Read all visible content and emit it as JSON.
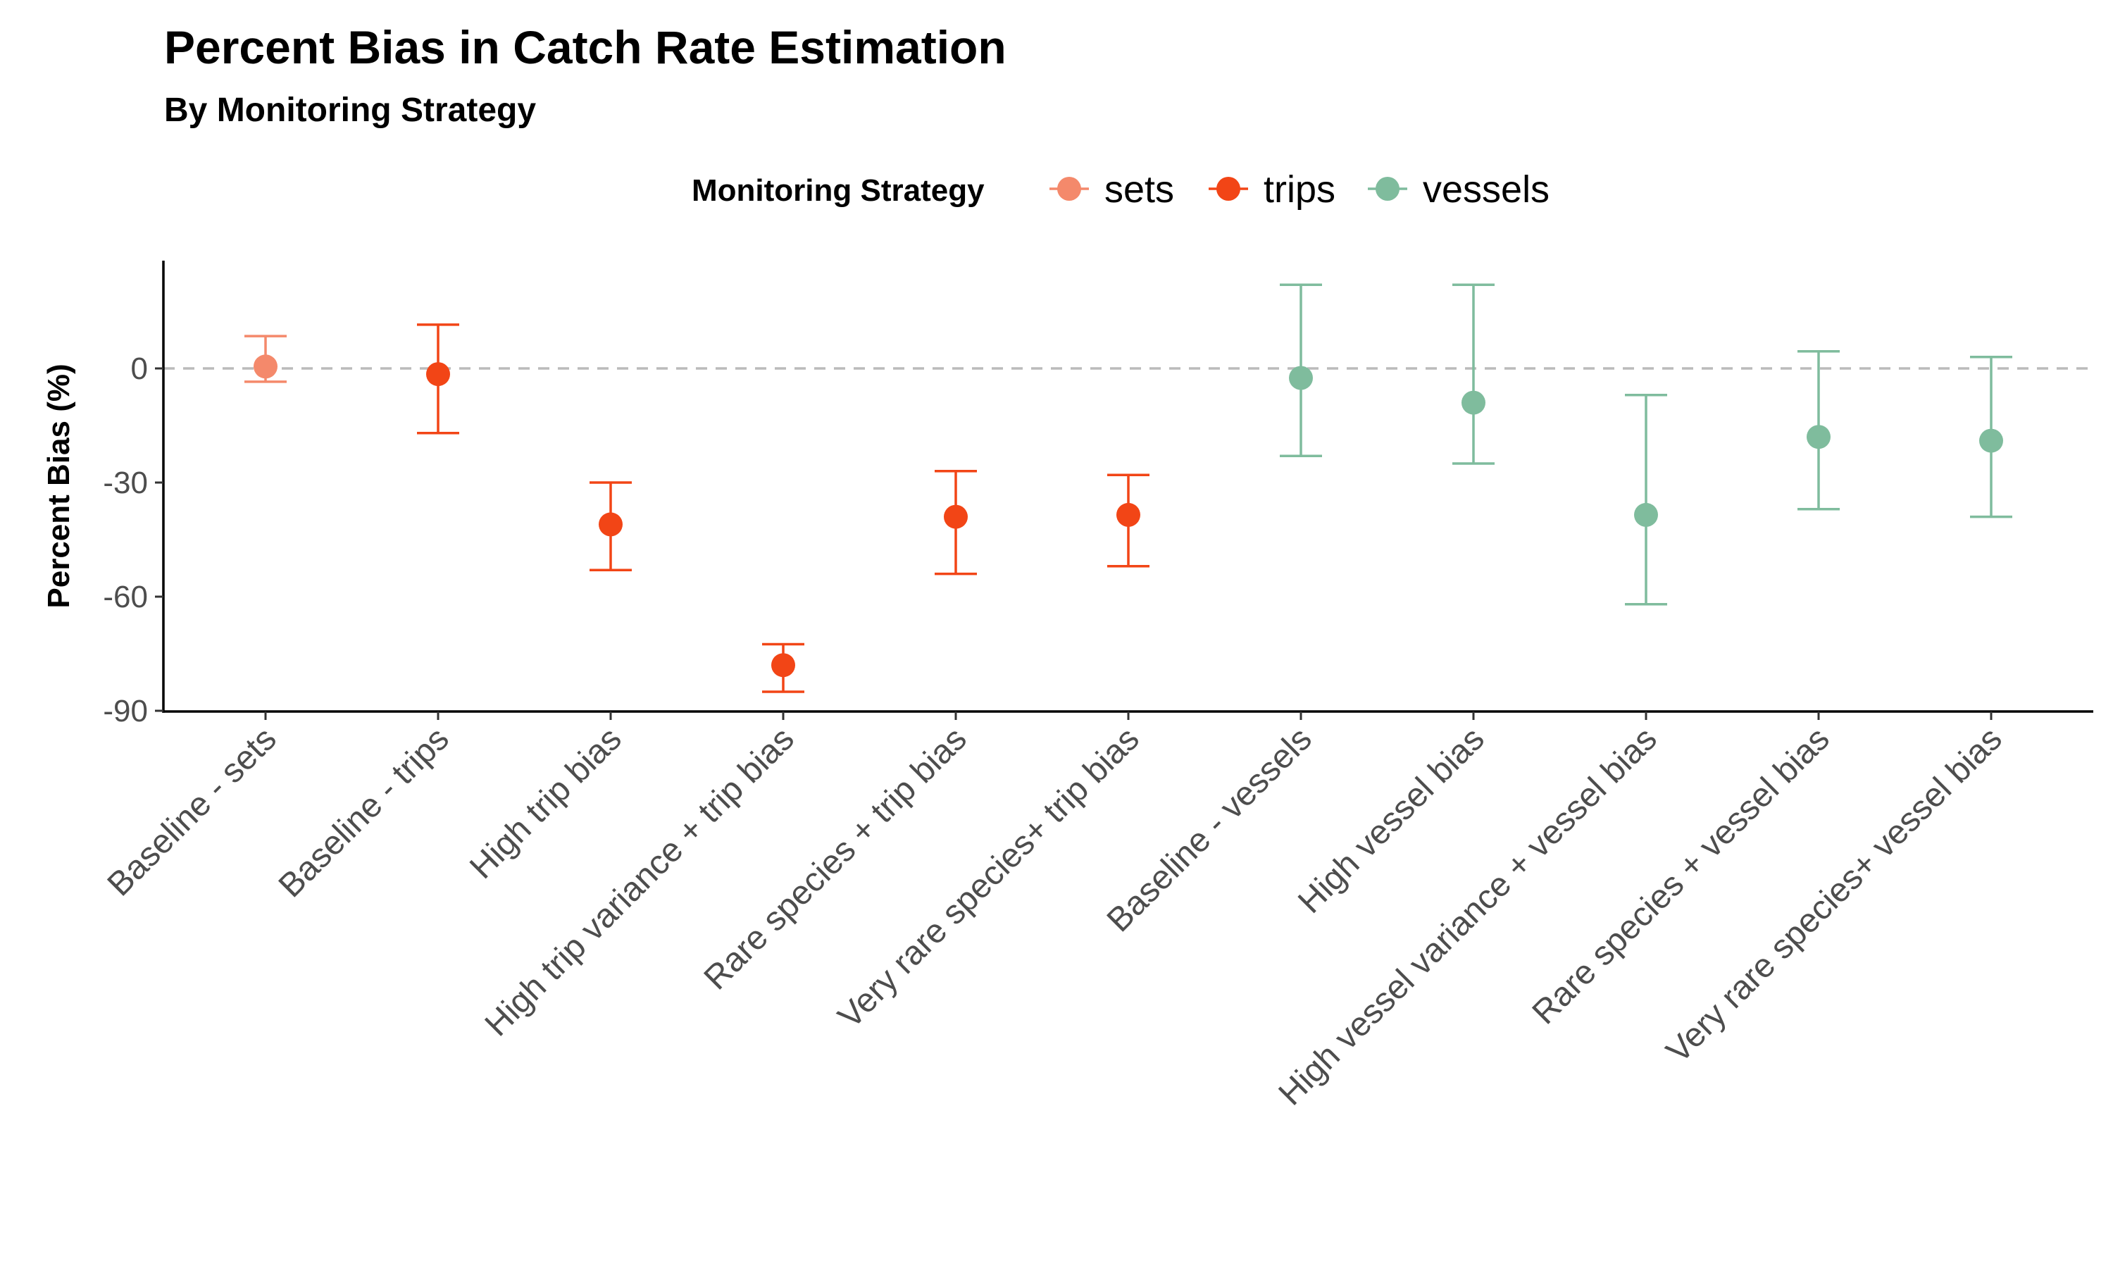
{
  "chart_data": {
    "type": "scatter",
    "title": "Percent Bias in Catch Rate Estimation",
    "subtitle": "By Monitoring Strategy",
    "xlabel": "",
    "ylabel": "Percent Bias (%)",
    "ylim": [
      -90,
      27
    ],
    "yticks": [
      0,
      -30,
      -60,
      -90
    ],
    "reference_line": {
      "y": 0,
      "style": "dashed"
    },
    "grid": false,
    "legend": {
      "title": "Monitoring Strategy",
      "placement": "top",
      "entries": [
        {
          "label": "sets",
          "color": "#F4896B"
        },
        {
          "label": "trips",
          "color": "#F24516"
        },
        {
          "label": "vessels",
          "color": "#7FBC9D"
        }
      ]
    },
    "categories": [
      "Baseline -  sets",
      "Baseline -  trips",
      "High trip bias",
      "High trip variance + trip bias",
      "Rare species + trip bias",
      "Very rare species+ trip bias",
      "Baseline -  vessels",
      "High vessel bias",
      "High vessel variance + vessel bias",
      "Rare species + vessel bias",
      "Very rare species+ vessel bias"
    ],
    "points": [
      {
        "category": "Baseline -  sets",
        "group": "sets",
        "y": 0.5,
        "lower": -3.5,
        "upper": 8.5
      },
      {
        "category": "Baseline -  trips",
        "group": "trips",
        "y": -1.5,
        "lower": -17,
        "upper": 11.5
      },
      {
        "category": "High trip bias",
        "group": "trips",
        "y": -41,
        "lower": -53,
        "upper": -30
      },
      {
        "category": "High trip variance + trip bias",
        "group": "trips",
        "y": -78,
        "lower": -85,
        "upper": -72.5
      },
      {
        "category": "Rare species + trip bias",
        "group": "trips",
        "y": -39,
        "lower": -54,
        "upper": -27
      },
      {
        "category": "Very rare species+ trip bias",
        "group": "trips",
        "y": -38.5,
        "lower": -52,
        "upper": -28
      },
      {
        "category": "Baseline -  vessels",
        "group": "vessels",
        "y": -2.5,
        "lower": -23,
        "upper": 22
      },
      {
        "category": "High vessel bias",
        "group": "vessels",
        "y": -9,
        "lower": -25,
        "upper": 22
      },
      {
        "category": "High vessel variance + vessel bias",
        "group": "vessels",
        "y": -38.5,
        "lower": -62,
        "upper": -7
      },
      {
        "category": "Rare species + vessel bias",
        "group": "vessels",
        "y": -18,
        "lower": -37,
        "upper": 4.5
      },
      {
        "category": "Very rare species+ vessel bias",
        "group": "vessels",
        "y": -19,
        "lower": -39,
        "upper": 3
      }
    ]
  }
}
